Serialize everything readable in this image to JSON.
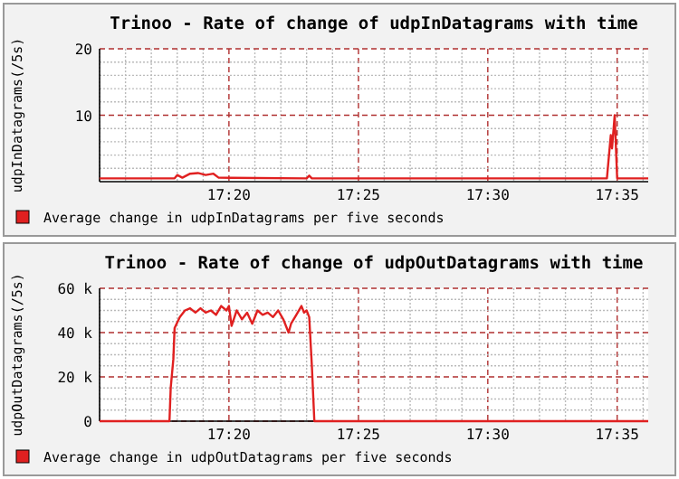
{
  "chart_data": [
    {
      "type": "line",
      "title": "Trinoo - Rate of change of udpInDatagrams with time",
      "ylabel": "udpInDatagrams(/5s)",
      "xlim": [
        17.25,
        17.6033
      ],
      "ylim": [
        0,
        20
      ],
      "xticks": [
        {
          "value": 17.25,
          "label": null
        },
        {
          "value": 17.2667,
          "label": null
        },
        {
          "value": 17.2833,
          "label": null
        },
        {
          "value": 17.3,
          "label": null
        },
        {
          "value": 17.3167,
          "label": null
        },
        {
          "value": 17.3333,
          "label": "17:20"
        },
        {
          "value": 17.35,
          "label": null
        },
        {
          "value": 17.3667,
          "label": null
        },
        {
          "value": 17.3833,
          "label": null
        },
        {
          "value": 17.4,
          "label": null
        },
        {
          "value": 17.4167,
          "label": "17:25"
        },
        {
          "value": 17.4333,
          "label": null
        },
        {
          "value": 17.45,
          "label": null
        },
        {
          "value": 17.4667,
          "label": null
        },
        {
          "value": 17.4833,
          "label": null
        },
        {
          "value": 17.5,
          "label": "17:30"
        },
        {
          "value": 17.5167,
          "label": null
        },
        {
          "value": 17.5333,
          "label": null
        },
        {
          "value": 17.55,
          "label": null
        },
        {
          "value": 17.5667,
          "label": null
        },
        {
          "value": 17.5833,
          "label": "17:35"
        },
        {
          "value": 17.6,
          "label": null
        }
      ],
      "yticks": [
        {
          "value": 2,
          "label": null
        },
        {
          "value": 4,
          "label": null
        },
        {
          "value": 6,
          "label": null
        },
        {
          "value": 8,
          "label": null
        },
        10,
        {
          "value": 12,
          "label": null
        },
        {
          "value": 14,
          "label": null
        },
        {
          "value": 16,
          "label": null
        },
        {
          "value": 18,
          "label": null
        },
        20
      ],
      "grid": true,
      "legend": "bottom",
      "series": [
        {
          "name": "Average change in udpInDatagrams per five seconds",
          "color": "#e02020",
          "x": [
            17.25,
            17.2983,
            17.3,
            17.3033,
            17.3083,
            17.3133,
            17.3183,
            17.3233,
            17.3267,
            17.3833,
            17.385,
            17.3867,
            17.5767,
            17.5792,
            17.58,
            17.5817,
            17.5833,
            17.6033
          ],
          "values": [
            0.5,
            0.5,
            1.0,
            0.6,
            1.2,
            1.3,
            1.0,
            1.2,
            0.6,
            0.5,
            0.9,
            0.5,
            0.5,
            7,
            5,
            10,
            0.5,
            0.5
          ]
        }
      ]
    },
    {
      "type": "line",
      "title": "Trinoo - Rate of change of udpOutDatagrams with time",
      "ylabel": "udpOutDatagrams(/5s)",
      "xlim": [
        17.25,
        17.6033
      ],
      "ylim": [
        0,
        60000
      ],
      "xticks": [
        {
          "value": 17.25,
          "label": null
        },
        {
          "value": 17.2667,
          "label": null
        },
        {
          "value": 17.2833,
          "label": null
        },
        {
          "value": 17.3,
          "label": null
        },
        {
          "value": 17.3167,
          "label": null
        },
        {
          "value": 17.3333,
          "label": "17:20"
        },
        {
          "value": 17.35,
          "label": null
        },
        {
          "value": 17.3667,
          "label": null
        },
        {
          "value": 17.3833,
          "label": null
        },
        {
          "value": 17.4,
          "label": null
        },
        {
          "value": 17.4167,
          "label": "17:25"
        },
        {
          "value": 17.4333,
          "label": null
        },
        {
          "value": 17.45,
          "label": null
        },
        {
          "value": 17.4667,
          "label": null
        },
        {
          "value": 17.4833,
          "label": null
        },
        {
          "value": 17.5,
          "label": "17:30"
        },
        {
          "value": 17.5167,
          "label": null
        },
        {
          "value": 17.5333,
          "label": null
        },
        {
          "value": 17.55,
          "label": null
        },
        {
          "value": 17.5667,
          "label": null
        },
        {
          "value": 17.5833,
          "label": "17:35"
        },
        {
          "value": 17.6,
          "label": null
        }
      ],
      "yticks": [
        0,
        {
          "value": 5000,
          "label": null
        },
        {
          "value": 10000,
          "label": null
        },
        {
          "value": 15000,
          "label": null
        },
        {
          "value": 20000,
          "label": "20 k"
        },
        {
          "value": 25000,
          "label": null
        },
        {
          "value": 30000,
          "label": null
        },
        {
          "value": 35000,
          "label": null
        },
        {
          "value": 40000,
          "label": "40 k"
        },
        {
          "value": 45000,
          "label": null
        },
        {
          "value": 50000,
          "label": null
        },
        {
          "value": 55000,
          "label": null
        },
        {
          "value": 60000,
          "label": "60 k"
        }
      ],
      "grid": true,
      "legend": "bottom",
      "series": [
        {
          "name": "Average change in udpOutDatagrams per five seconds",
          "color": "#e02020",
          "x": [
            17.25,
            17.295,
            17.2958,
            17.2975,
            17.2983,
            17.3017,
            17.305,
            17.3083,
            17.3117,
            17.315,
            17.3183,
            17.3217,
            17.325,
            17.3283,
            17.3317,
            17.3333,
            17.335,
            17.3383,
            17.3417,
            17.345,
            17.3483,
            17.3517,
            17.355,
            17.3583,
            17.3617,
            17.365,
            17.3683,
            17.3717,
            17.3733,
            17.3767,
            17.38,
            17.3817,
            17.3833,
            17.385,
            17.3867,
            17.3883,
            17.6033
          ],
          "values": [
            0,
            0,
            15000,
            28000,
            42000,
            47000,
            50000,
            51000,
            49000,
            51000,
            49000,
            50000,
            48000,
            52000,
            50000,
            52000,
            43000,
            50000,
            46000,
            49000,
            44000,
            50000,
            48000,
            49000,
            47000,
            50000,
            46000,
            40000,
            44000,
            48000,
            52000,
            49000,
            50000,
            47000,
            25000,
            0,
            0
          ]
        }
      ]
    }
  ]
}
